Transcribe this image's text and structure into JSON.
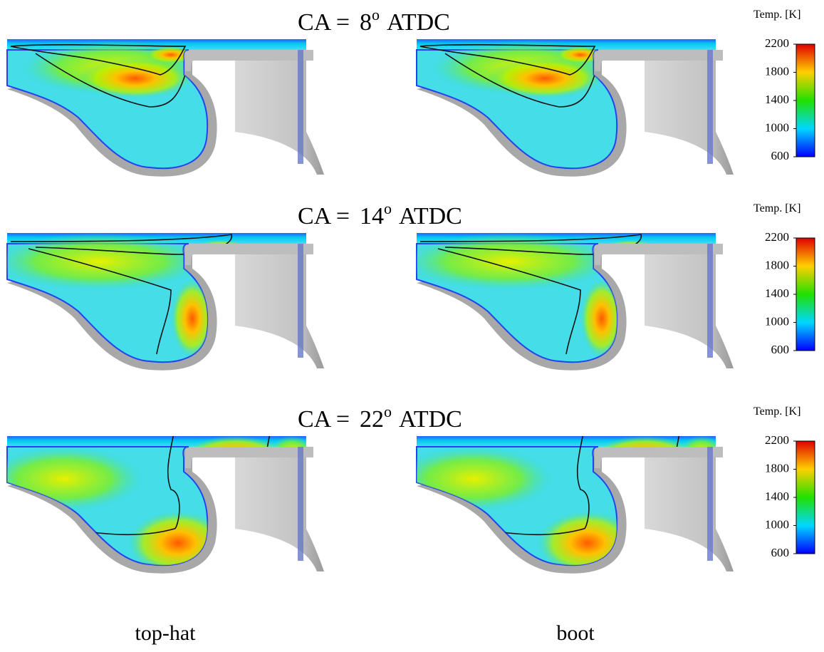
{
  "rows": [
    {
      "title": {
        "prefix": "CA =",
        "angle": "8",
        "degree": "o",
        "suffix": "ATDC"
      },
      "colorbar": {
        "title": "Temp. [K]",
        "range": [
          600,
          2200
        ],
        "ticks": [
          2200,
          1800,
          1400,
          1000,
          600
        ]
      }
    },
    {
      "title": {
        "prefix": "CA =",
        "angle": "14",
        "degree": "o",
        "suffix": "ATDC"
      },
      "colorbar": {
        "title": "Temp. [K]",
        "range": [
          600,
          2200
        ],
        "ticks": [
          2200,
          1800,
          1400,
          1000,
          600
        ]
      }
    },
    {
      "title": {
        "prefix": "CA =",
        "angle": "22",
        "degree": "o",
        "suffix": "ATDC"
      },
      "colorbar": {
        "title": "Temp. [K]",
        "range": [
          600,
          2200
        ],
        "ticks": [
          2200,
          1800,
          1400,
          1000,
          600
        ]
      }
    }
  ],
  "columns": [
    "top-hat",
    "boot"
  ]
}
